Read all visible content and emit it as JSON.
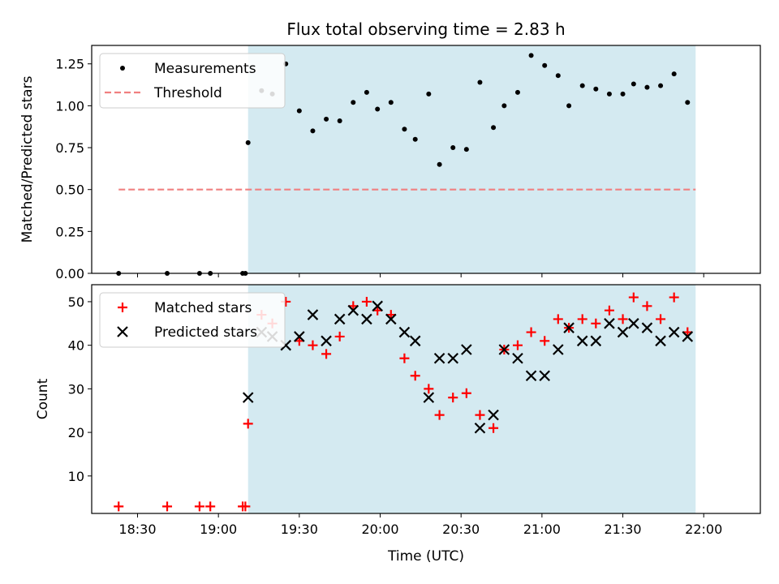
{
  "title": "Flux total observing time = 2.83 h",
  "colors": {
    "shade": "#d4eaf1",
    "threshold": "#f08080",
    "matched": "#ff0000",
    "predicted": "#000000",
    "measurement": "#000000"
  },
  "chart_data": [
    {
      "type": "scatter",
      "panel": "top",
      "ylabel": "Matched/Predicted stars",
      "xlabel": "",
      "xlim_minutes": [
        1093,
        1341
      ],
      "ylim": [
        0,
        1.36
      ],
      "yticks": [
        "0.00",
        "0.25",
        "0.50",
        "0.75",
        "1.00",
        "1.25"
      ],
      "shaded_x_range": [
        1151,
        1317
      ],
      "legend": {
        "location": "upper-left",
        "entries": [
          "Measurements",
          "Threshold"
        ]
      },
      "threshold": {
        "label": "Threshold",
        "value": 0.5,
        "x_range": [
          1103,
          1317
        ]
      },
      "series": [
        {
          "name": "Measurements",
          "x": [
            1103,
            1121,
            1133,
            1137,
            1149,
            1150,
            1151,
            1156,
            1160,
            1165,
            1170,
            1175,
            1180,
            1185,
            1190,
            1195,
            1199,
            1204,
            1209,
            1213,
            1218,
            1222,
            1227,
            1232,
            1237,
            1242,
            1246,
            1251,
            1256,
            1261,
            1266,
            1270,
            1275,
            1280,
            1285,
            1290,
            1294,
            1299,
            1304,
            1309,
            1314
          ],
          "y": [
            0,
            0,
            0,
            0,
            0,
            0,
            0.78,
            1.09,
            1.07,
            1.25,
            0.97,
            0.85,
            0.92,
            0.91,
            1.02,
            1.08,
            0.98,
            1.02,
            0.86,
            0.8,
            1.07,
            0.65,
            0.75,
            0.74,
            1.14,
            0.87,
            1.0,
            1.08,
            1.3,
            1.24,
            1.18,
            1.0,
            1.12,
            1.1,
            1.07,
            1.07,
            1.13,
            1.11,
            1.12,
            1.19,
            1.02
          ]
        }
      ]
    },
    {
      "type": "scatter",
      "panel": "bottom",
      "ylabel": "Count",
      "xlabel": "Time (UTC)",
      "xlim_minutes": [
        1093,
        1341
      ],
      "ylim": [
        1.4,
        53.9
      ],
      "yticks": [
        "10",
        "20",
        "30",
        "40",
        "50"
      ],
      "xticks": [
        "18:30",
        "19:00",
        "19:30",
        "20:00",
        "20:30",
        "21:00",
        "21:30",
        "22:00"
      ],
      "xtick_minutes": [
        1110,
        1140,
        1170,
        1200,
        1230,
        1260,
        1290,
        1320
      ],
      "shaded_x_range": [
        1151,
        1317
      ],
      "legend": {
        "location": "upper-left",
        "entries": [
          "Matched stars",
          "Predicted stars"
        ]
      },
      "series": [
        {
          "name": "Matched stars",
          "marker": "plus",
          "x": [
            1103,
            1121,
            1133,
            1137,
            1149,
            1150,
            1151,
            1156,
            1160,
            1165,
            1170,
            1175,
            1180,
            1185,
            1190,
            1195,
            1199,
            1204,
            1209,
            1213,
            1218,
            1222,
            1227,
            1232,
            1237,
            1242,
            1246,
            1251,
            1256,
            1261,
            1266,
            1270,
            1275,
            1280,
            1285,
            1290,
            1294,
            1299,
            1304,
            1309,
            1314
          ],
          "y": [
            3,
            3,
            3,
            3,
            3,
            3,
            22,
            47,
            45,
            50,
            41,
            40,
            38,
            42,
            49,
            50,
            48,
            47,
            37,
            33,
            30,
            24,
            28,
            29,
            24,
            21,
            39,
            40,
            43,
            41,
            46,
            44,
            46,
            45,
            48,
            46,
            51,
            49,
            46,
            51,
            43
          ]
        },
        {
          "name": "Predicted stars",
          "marker": "x",
          "x": [
            1151,
            1156,
            1160,
            1165,
            1170,
            1175,
            1180,
            1185,
            1190,
            1195,
            1199,
            1204,
            1209,
            1213,
            1218,
            1222,
            1227,
            1232,
            1237,
            1242,
            1246,
            1251,
            1256,
            1261,
            1266,
            1270,
            1275,
            1280,
            1285,
            1290,
            1294,
            1299,
            1304,
            1309,
            1314
          ],
          "y": [
            28,
            43,
            42,
            40,
            42,
            47,
            41,
            46,
            48,
            46,
            49,
            46,
            43,
            41,
            28,
            37,
            37,
            39,
            21,
            24,
            39,
            37,
            33,
            33,
            39,
            44,
            41,
            41,
            45,
            43,
            45,
            44,
            41,
            43,
            42
          ]
        }
      ]
    }
  ]
}
